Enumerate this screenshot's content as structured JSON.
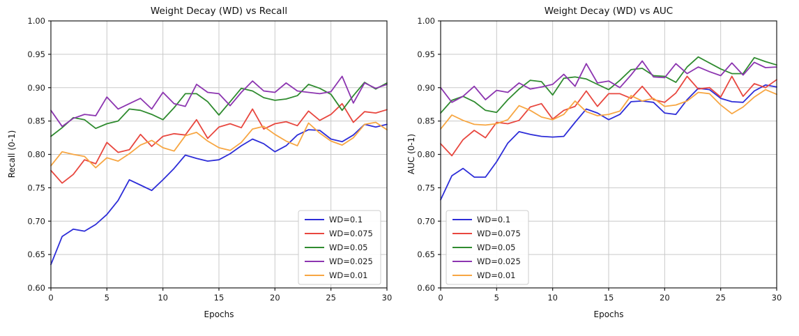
{
  "figure": {
    "background": "#ffffff",
    "grid_color": "#c9c9c9",
    "spine_color": "#1a1a1a",
    "tick_text_color": "#1a1a1a"
  },
  "chart_data": [
    {
      "type": "line",
      "title": "Weight Decay (WD) vs Recall",
      "xlabel": "Epochs",
      "ylabel": "Recall (0-1)",
      "xlim": [
        0,
        30
      ],
      "ylim": [
        0.6,
        1.0
      ],
      "xticks": [
        0,
        5,
        10,
        15,
        20,
        25,
        30
      ],
      "yticks": [
        0.6,
        0.65,
        0.7,
        0.75,
        0.8,
        0.85,
        0.9,
        0.95,
        1.0
      ],
      "grid": true,
      "legend_loc": "lower right",
      "x": [
        0,
        1,
        2,
        3,
        4,
        5,
        6,
        7,
        8,
        9,
        10,
        11,
        12,
        13,
        14,
        15,
        16,
        17,
        18,
        19,
        20,
        21,
        22,
        23,
        24,
        25,
        26,
        27,
        28,
        29,
        30
      ],
      "series": [
        {
          "name": "WD=0.1",
          "color": "#2d2dd8",
          "values": [
            0.635,
            0.677,
            0.688,
            0.685,
            0.695,
            0.71,
            0.731,
            0.762,
            0.754,
            0.746,
            0.762,
            0.779,
            0.799,
            0.794,
            0.79,
            0.792,
            0.801,
            0.813,
            0.823,
            0.816,
            0.804,
            0.813,
            0.829,
            0.837,
            0.836,
            0.823,
            0.819,
            0.829,
            0.845,
            0.841,
            0.845
          ]
        },
        {
          "name": "WD=0.075",
          "color": "#e8473f",
          "values": [
            0.776,
            0.757,
            0.77,
            0.792,
            0.786,
            0.818,
            0.803,
            0.807,
            0.83,
            0.812,
            0.827,
            0.831,
            0.829,
            0.852,
            0.824,
            0.841,
            0.846,
            0.84,
            0.868,
            0.838,
            0.846,
            0.849,
            0.843,
            0.865,
            0.851,
            0.86,
            0.876,
            0.848,
            0.864,
            0.862,
            0.867
          ]
        },
        {
          "name": "WD=0.05",
          "color": "#2f8b2f",
          "values": [
            0.827,
            0.84,
            0.855,
            0.852,
            0.839,
            0.846,
            0.85,
            0.868,
            0.866,
            0.86,
            0.852,
            0.87,
            0.891,
            0.891,
            0.879,
            0.859,
            0.879,
            0.899,
            0.895,
            0.885,
            0.881,
            0.883,
            0.888,
            0.905,
            0.899,
            0.89,
            0.866,
            0.888,
            0.908,
            0.898,
            0.907
          ]
        },
        {
          "name": "WD=0.025",
          "color": "#8c35b0",
          "values": [
            0.866,
            0.842,
            0.854,
            0.86,
            0.858,
            0.886,
            0.868,
            0.876,
            0.884,
            0.868,
            0.893,
            0.876,
            0.872,
            0.905,
            0.893,
            0.891,
            0.873,
            0.893,
            0.91,
            0.895,
            0.893,
            0.907,
            0.895,
            0.893,
            0.891,
            0.894,
            0.917,
            0.877,
            0.907,
            0.899,
            0.905
          ]
        },
        {
          "name": "WD=0.01",
          "color": "#f7a642",
          "values": [
            0.783,
            0.804,
            0.8,
            0.797,
            0.78,
            0.795,
            0.79,
            0.801,
            0.814,
            0.821,
            0.81,
            0.805,
            0.828,
            0.833,
            0.82,
            0.81,
            0.806,
            0.818,
            0.838,
            0.842,
            0.83,
            0.82,
            0.813,
            0.847,
            0.832,
            0.82,
            0.814,
            0.825,
            0.845,
            0.848,
            0.837
          ]
        }
      ]
    },
    {
      "type": "line",
      "title": "Weight Decay (WD) vs AUC",
      "xlabel": "Epochs",
      "ylabel": "AUC (0-1)",
      "xlim": [
        0,
        30
      ],
      "ylim": [
        0.6,
        1.0
      ],
      "xticks": [
        0,
        5,
        10,
        15,
        20,
        25,
        30
      ],
      "yticks": [
        0.6,
        0.65,
        0.7,
        0.75,
        0.8,
        0.85,
        0.9,
        0.95,
        1.0
      ],
      "grid": true,
      "legend_loc": "lower left",
      "x": [
        0,
        1,
        2,
        3,
        4,
        5,
        6,
        7,
        8,
        9,
        10,
        11,
        12,
        13,
        14,
        15,
        16,
        17,
        18,
        19,
        20,
        21,
        22,
        23,
        24,
        25,
        26,
        27,
        28,
        29,
        30
      ],
      "series": [
        {
          "name": "WD=0.1",
          "color": "#2d2dd8",
          "values": [
            0.732,
            0.768,
            0.779,
            0.766,
            0.766,
            0.789,
            0.817,
            0.834,
            0.83,
            0.827,
            0.826,
            0.827,
            0.848,
            0.868,
            0.862,
            0.852,
            0.86,
            0.879,
            0.88,
            0.878,
            0.862,
            0.86,
            0.882,
            0.899,
            0.897,
            0.884,
            0.879,
            0.878,
            0.895,
            0.904,
            0.901
          ]
        },
        {
          "name": "WD=0.075",
          "color": "#e8473f",
          "values": [
            0.816,
            0.798,
            0.822,
            0.836,
            0.825,
            0.848,
            0.846,
            0.851,
            0.871,
            0.876,
            0.853,
            0.866,
            0.872,
            0.895,
            0.872,
            0.891,
            0.891,
            0.884,
            0.902,
            0.882,
            0.878,
            0.892,
            0.917,
            0.898,
            0.9,
            0.886,
            0.917,
            0.887,
            0.906,
            0.9,
            0.912
          ]
        },
        {
          "name": "WD=0.05",
          "color": "#2f8b2f",
          "values": [
            0.862,
            0.881,
            0.887,
            0.879,
            0.866,
            0.863,
            0.882,
            0.898,
            0.911,
            0.909,
            0.889,
            0.914,
            0.916,
            0.913,
            0.905,
            0.897,
            0.911,
            0.927,
            0.929,
            0.918,
            0.917,
            0.908,
            0.931,
            0.946,
            0.937,
            0.928,
            0.921,
            0.921,
            0.945,
            0.939,
            0.934
          ]
        },
        {
          "name": "WD=0.025",
          "color": "#8c35b0",
          "values": [
            0.9,
            0.878,
            0.887,
            0.902,
            0.882,
            0.896,
            0.893,
            0.907,
            0.898,
            0.901,
            0.905,
            0.92,
            0.902,
            0.936,
            0.907,
            0.91,
            0.9,
            0.919,
            0.94,
            0.916,
            0.915,
            0.936,
            0.921,
            0.931,
            0.924,
            0.918,
            0.937,
            0.919,
            0.938,
            0.93,
            0.931
          ]
        },
        {
          "name": "WD=0.01",
          "color": "#f7a642",
          "values": [
            0.838,
            0.859,
            0.851,
            0.845,
            0.844,
            0.846,
            0.852,
            0.873,
            0.866,
            0.856,
            0.852,
            0.86,
            0.88,
            0.864,
            0.858,
            0.86,
            0.865,
            0.888,
            0.88,
            0.884,
            0.872,
            0.874,
            0.88,
            0.893,
            0.891,
            0.874,
            0.861,
            0.871,
            0.886,
            0.897,
            0.89
          ]
        }
      ]
    }
  ]
}
